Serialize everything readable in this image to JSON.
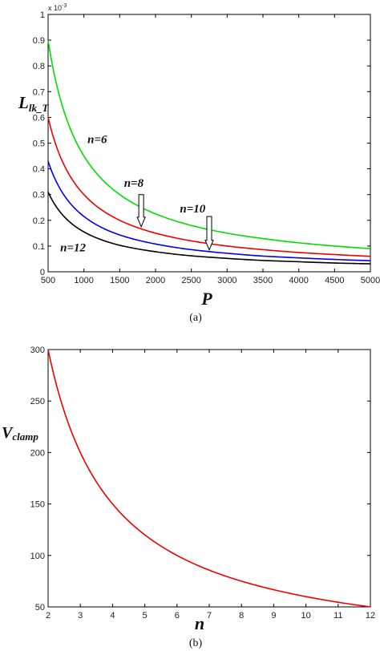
{
  "chart_data": [
    {
      "type": "line",
      "caption": "(a)",
      "xlabel": "P",
      "ylabel_main": "L",
      "ylabel_sub": "lk_T",
      "y_multiplier_base": "x 10",
      "y_multiplier_exp": "-3",
      "xlim": [
        500,
        5000
      ],
      "ylim": [
        0,
        1
      ],
      "x_ticks": [
        500,
        1000,
        1500,
        2000,
        2500,
        3000,
        3500,
        4000,
        4500,
        5000
      ],
      "y_ticks": [
        0,
        0.1,
        0.2,
        0.3,
        0.4,
        0.5,
        0.6,
        0.7,
        0.8,
        0.9,
        1
      ],
      "x": [
        500,
        750,
        1000,
        1500,
        2000,
        2500,
        3000,
        3500,
        4000,
        4500,
        5000
      ],
      "series": [
        {
          "name": "n=6",
          "color": "#00dd00",
          "values": [
            0.9,
            0.6,
            0.45,
            0.3,
            0.225,
            0.18,
            0.15,
            0.129,
            0.1125,
            0.1,
            0.09
          ]
        },
        {
          "name": "n=8",
          "color": "#ee0000",
          "values": [
            0.6,
            0.4,
            0.3,
            0.2,
            0.15,
            0.12,
            0.1,
            0.086,
            0.075,
            0.067,
            0.06
          ]
        },
        {
          "name": "n=10",
          "color": "#0000ee",
          "values": [
            0.43,
            0.287,
            0.215,
            0.143,
            0.108,
            0.086,
            0.072,
            0.061,
            0.054,
            0.048,
            0.043
          ]
        },
        {
          "name": "n=12",
          "color": "#000000",
          "values": [
            0.31,
            0.207,
            0.155,
            0.103,
            0.078,
            0.062,
            0.052,
            0.044,
            0.039,
            0.034,
            0.031
          ]
        }
      ],
      "annotations": [
        {
          "text": "n=6",
          "x": 1050,
          "y": 0.5
        },
        {
          "text": "n=8",
          "x": 1560,
          "y": 0.33
        },
        {
          "text": "n=10",
          "x": 2340,
          "y": 0.23
        },
        {
          "text": "n=12",
          "x": 670,
          "y": 0.08
        }
      ],
      "arrows": [
        {
          "x": 1800,
          "y_from": 0.3,
          "y_to": 0.175
        },
        {
          "x": 2750,
          "y_from": 0.215,
          "y_to": 0.085
        }
      ]
    },
    {
      "type": "line",
      "caption": "(b)",
      "xlabel": "n",
      "ylabel_main": "V",
      "ylabel_sub": "clamp",
      "xlim": [
        2,
        12
      ],
      "ylim": [
        50,
        300
      ],
      "x_ticks": [
        2,
        3,
        4,
        5,
        6,
        7,
        8,
        9,
        10,
        11,
        12
      ],
      "y_ticks": [
        50,
        100,
        150,
        200,
        250,
        300
      ],
      "x": [
        2,
        2.5,
        3,
        3.5,
        4,
        5,
        6,
        7,
        8,
        9,
        10,
        11,
        12
      ],
      "series": [
        {
          "color": "#ee0000",
          "values": [
            300,
            240,
            200,
            171.4,
            150,
            120,
            100,
            85.7,
            75,
            66.7,
            60,
            54.5,
            50
          ]
        }
      ]
    }
  ]
}
